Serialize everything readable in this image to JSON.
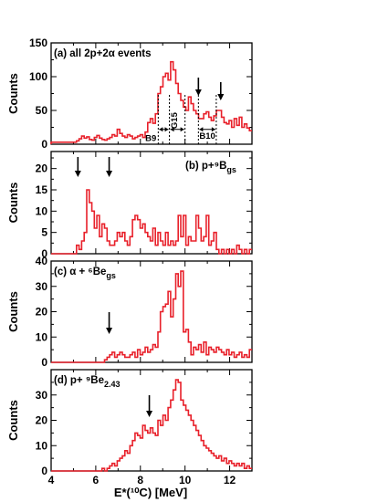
{
  "chart_data": [
    {
      "type": "histogram",
      "panel_label": "(a) all 2p+2α events",
      "ylabel": "Counts",
      "xlim": [
        4,
        13
      ],
      "ylim": [
        0,
        150
      ],
      "yticks": [
        "0",
        "50",
        "100",
        "150"
      ],
      "series": [
        {
          "values": [
            3,
            3,
            3,
            3,
            3,
            3,
            3,
            3,
            3,
            3,
            5,
            8,
            12,
            9,
            11,
            7,
            6,
            10,
            13,
            9,
            7,
            6,
            8,
            10,
            14,
            12,
            22,
            16,
            12,
            10,
            14,
            12,
            8,
            10,
            12,
            14,
            10,
            18,
            32,
            38,
            31,
            45,
            75,
            85,
            100,
            105,
            95,
            122,
            110,
            90,
            75,
            65,
            55,
            50,
            70,
            60,
            50,
            45,
            38,
            38,
            45,
            48,
            40,
            35,
            42,
            50,
            50,
            40,
            32,
            30,
            35,
            25,
            38,
            28,
            40,
            25,
            30,
            24,
            20
          ]
        }
      ],
      "arrows_at": [
        10.6,
        11.6
      ],
      "bands": [
        {
          "label": "B9",
          "from": 8.8,
          "to": 9.3
        },
        {
          "label": "G15",
          "from": 9.3,
          "to": 10.0
        },
        {
          "label": "B10",
          "from": 10.6,
          "to": 11.4
        }
      ]
    },
    {
      "type": "histogram",
      "panel_label": "(b) p+⁹B",
      "panel_label_sub": "gs",
      "ylabel": "Counts",
      "xlim": [
        4,
        13
      ],
      "ylim": [
        0,
        24
      ],
      "yticks": [
        "0",
        "5",
        "10",
        "15",
        "20"
      ],
      "series": [
        {
          "values": [
            0,
            0,
            0,
            0,
            0,
            0,
            0,
            0,
            0,
            0,
            2,
            1,
            3,
            5,
            15,
            12,
            10,
            6,
            9,
            4,
            7,
            6,
            3,
            2,
            2,
            3,
            5,
            4,
            5,
            3,
            2,
            4,
            8,
            9,
            8,
            6,
            7,
            5,
            4,
            3,
            6,
            2,
            5,
            3,
            2,
            5,
            2,
            3,
            2,
            3,
            9,
            4,
            9,
            2,
            4,
            3,
            3,
            9,
            6,
            3,
            4,
            9,
            2,
            3,
            5,
            1,
            0,
            1,
            0,
            1,
            0,
            1,
            0,
            2,
            1,
            0,
            1,
            0,
            1
          ]
        }
      ],
      "arrows_at": [
        5.2,
        6.6
      ]
    },
    {
      "type": "histogram",
      "panel_label": "(c) α + ⁶Be",
      "panel_label_sub": "gs",
      "ylabel": "Counts",
      "xlim": [
        4,
        13
      ],
      "ylim": [
        0,
        40
      ],
      "yticks": [
        "0",
        "10",
        "20",
        "30",
        "40"
      ],
      "series": [
        {
          "values": [
            0,
            0,
            0,
            0,
            0,
            0,
            0,
            0,
            0,
            0,
            0,
            0,
            0,
            0,
            0,
            0,
            0,
            0,
            0,
            0,
            0,
            1,
            2,
            3,
            4,
            2,
            3,
            4,
            3,
            2,
            2,
            3,
            4,
            2,
            5,
            3,
            4,
            6,
            4,
            5,
            7,
            6,
            12,
            20,
            22,
            23,
            28,
            18,
            25,
            35,
            30,
            36,
            12,
            13,
            8,
            3,
            6,
            5,
            7,
            4,
            8,
            3,
            6,
            5,
            4,
            6,
            5,
            4,
            3,
            5,
            3,
            4,
            2,
            3,
            4,
            2,
            3,
            2,
            5
          ]
        }
      ],
      "arrows_at": [
        6.6
      ]
    },
    {
      "type": "histogram",
      "panel_label": "(d) p+ ⁹Be",
      "panel_label_sub": "2.43",
      "ylabel": "Counts",
      "xlabel": "E*(¹⁰C) [MeV]",
      "xlim": [
        4,
        13
      ],
      "ylim": [
        0,
        40
      ],
      "yticks": [
        "0",
        "10",
        "20",
        "30"
      ],
      "xticks": [
        "4",
        "6",
        "8",
        "10",
        "12"
      ],
      "series": [
        {
          "values": [
            0,
            0,
            0,
            0,
            0,
            0,
            0,
            0,
            0,
            0,
            0,
            0,
            0,
            0,
            0,
            0,
            0,
            0,
            0,
            0,
            1,
            0,
            1,
            2,
            3,
            2,
            4,
            5,
            6,
            8,
            7,
            10,
            12,
            15,
            14,
            13,
            18,
            16,
            15,
            17,
            15,
            14,
            20,
            18,
            22,
            20,
            25,
            28,
            32,
            36,
            35,
            28,
            26,
            24,
            22,
            20,
            18,
            16,
            14,
            12,
            10,
            9,
            8,
            7,
            6,
            5,
            6,
            4,
            5,
            3,
            4,
            3,
            2,
            3,
            2,
            3,
            1,
            2,
            1
          ]
        }
      ],
      "arrows_at": [
        8.4
      ]
    }
  ]
}
